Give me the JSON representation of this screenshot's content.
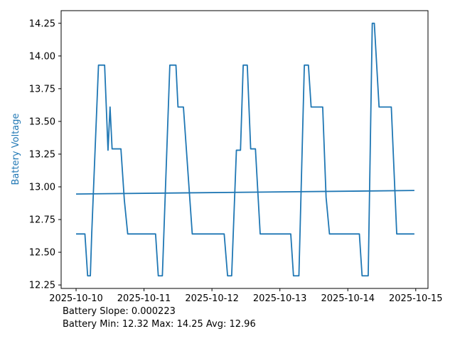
{
  "figure": {
    "ylabel": "Battery Voltage",
    "annotation_line1": "Battery Slope: 0.000223",
    "annotation_line2": "Battery Min: 12.32 Max: 14.25 Avg: 12.96",
    "accent_color": "#1f77b4",
    "axis_color": "#000000",
    "background_color": "#ffffff"
  },
  "chart_data": {
    "type": "line",
    "title": "",
    "xlabel": "",
    "ylabel": "Battery Voltage",
    "legend": "none",
    "grid": false,
    "x_ticks": [
      "2025-10-10",
      "2025-10-11",
      "2025-10-12",
      "2025-10-13",
      "2025-10-14",
      "2025-10-15"
    ],
    "y_ticks": [
      "12.25",
      "12.50",
      "12.75",
      "13.00",
      "13.25",
      "13.50",
      "13.75",
      "14.00",
      "14.25"
    ],
    "xlim_days": [
      -0.22,
      5.18
    ],
    "ylim": [
      12.2235,
      14.3465
    ],
    "stats": {
      "slope": 0.000223,
      "min": 12.32,
      "max": 14.25,
      "avg": 12.96
    },
    "series": [
      {
        "name": "battery-voltage",
        "color": "#1f77b4",
        "points": [
          [
            0.0,
            12.64
          ],
          [
            0.13,
            12.64
          ],
          [
            0.17,
            12.32
          ],
          [
            0.21,
            12.32
          ],
          [
            0.23,
            12.64
          ],
          [
            0.33,
            13.93
          ],
          [
            0.42,
            13.93
          ],
          [
            0.47,
            13.28
          ],
          [
            0.5,
            13.61
          ],
          [
            0.53,
            13.29
          ],
          [
            0.66,
            13.29
          ],
          [
            0.71,
            12.9
          ],
          [
            0.76,
            12.64
          ],
          [
            1.17,
            12.64
          ],
          [
            1.21,
            12.32
          ],
          [
            1.27,
            12.32
          ],
          [
            1.38,
            13.93
          ],
          [
            1.47,
            13.93
          ],
          [
            1.5,
            13.61
          ],
          [
            1.58,
            13.61
          ],
          [
            1.71,
            12.64
          ],
          [
            2.18,
            12.64
          ],
          [
            2.23,
            12.32
          ],
          [
            2.29,
            12.32
          ],
          [
            2.36,
            13.28
          ],
          [
            2.42,
            13.28
          ],
          [
            2.46,
            13.93
          ],
          [
            2.52,
            13.93
          ],
          [
            2.57,
            13.29
          ],
          [
            2.64,
            13.29
          ],
          [
            2.71,
            12.64
          ],
          [
            3.16,
            12.64
          ],
          [
            3.2,
            12.32
          ],
          [
            3.28,
            12.32
          ],
          [
            3.36,
            13.93
          ],
          [
            3.42,
            13.93
          ],
          [
            3.46,
            13.61
          ],
          [
            3.63,
            13.61
          ],
          [
            3.68,
            12.92
          ],
          [
            3.73,
            12.64
          ],
          [
            4.17,
            12.64
          ],
          [
            4.21,
            12.32
          ],
          [
            4.3,
            12.32
          ],
          [
            4.36,
            14.25
          ],
          [
            4.39,
            14.25
          ],
          [
            4.46,
            13.61
          ],
          [
            4.64,
            13.61
          ],
          [
            4.72,
            12.64
          ],
          [
            4.98,
            12.64
          ]
        ]
      },
      {
        "name": "trend",
        "color": "#1f77b4",
        "points": [
          [
            0.0,
            12.945
          ],
          [
            4.98,
            12.972
          ]
        ]
      }
    ]
  }
}
